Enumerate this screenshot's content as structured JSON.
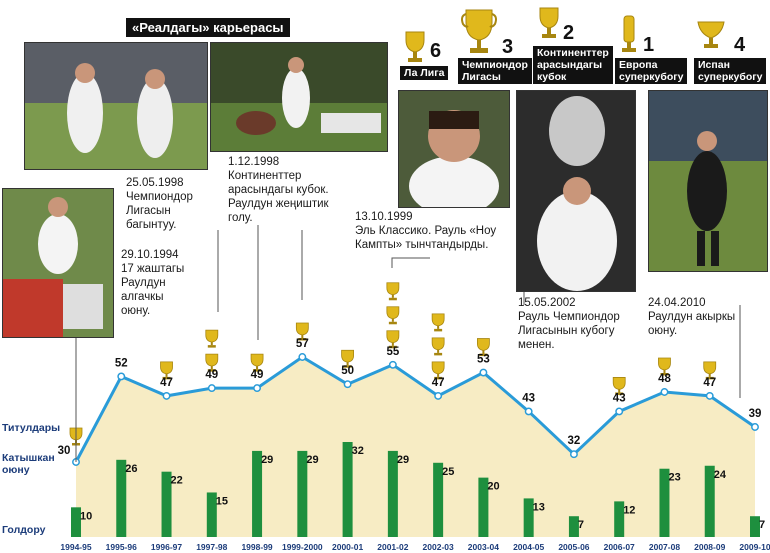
{
  "header": {
    "title": "«Реалдагы» карьерасы"
  },
  "trophy_stats": [
    {
      "count": "6",
      "label": "Ла Лига"
    },
    {
      "count": "3",
      "label": "Чемпиондор\nЛигасы"
    },
    {
      "count": "2",
      "label": "Континенттер\nарасындагы\nкубок"
    },
    {
      "count": "1",
      "label": "Европа\nсуперкубогу"
    },
    {
      "count": "4",
      "label": "Испан\nсуперкубогу"
    }
  ],
  "annotations": {
    "debut": "29.10.1994\n17 жаштагы\nРаулдун\nалгачкы\nоюну.",
    "cl1998": "25.05.1998\nЧемпиондор\nЛигасын\nбагынтуу.",
    "ic1998": "1.12.1998\nКонтиненттер\nарасындагы кубок.\nРаулдун жеңиштик\nголу.",
    "clasico": "13.10.1999\nЭль Классико. Рауль «Ноу\nКампты» тынчтандырды.",
    "cl2002": "15.05.2002\nРауль Чемпиондор\nЛигасынын кубогу\nменен.",
    "last": "24.04.2010\nРаулдун акыркы\nоюну."
  },
  "side_labels": {
    "titles": "Титулдары",
    "games": "Катышкан\nоюну",
    "goals": "Голдору"
  },
  "colors": {
    "line": "#2a9bd8",
    "bars": "#1e8f3e",
    "area": "#f7ecc4",
    "trophy": "#e0b81c"
  },
  "chart_data": {
    "type": "line",
    "categories": [
      "1994-95",
      "1995-96",
      "1996-97",
      "1997-98",
      "1998-99",
      "1999-2000",
      "2000-01",
      "2001-02",
      "2002-03",
      "2003-04",
      "2004-05",
      "2005-06",
      "2006-07",
      "2007-08",
      "2008-09",
      "2009-10"
    ],
    "series": [
      {
        "name": "Катышкан оюну",
        "type": "line",
        "values": [
          30,
          52,
          47,
          49,
          49,
          57,
          50,
          55,
          47,
          53,
          43,
          32,
          43,
          48,
          47,
          39
        ]
      },
      {
        "name": "Голдору",
        "type": "bar",
        "values": [
          10,
          26,
          22,
          15,
          29,
          29,
          32,
          29,
          25,
          20,
          13,
          7,
          12,
          23,
          24,
          7
        ]
      },
      {
        "name": "Титулдары",
        "type": "icons",
        "values": [
          1,
          0,
          1,
          2,
          1,
          1,
          1,
          3,
          3,
          1,
          0,
          0,
          1,
          1,
          1,
          0
        ]
      }
    ]
  }
}
